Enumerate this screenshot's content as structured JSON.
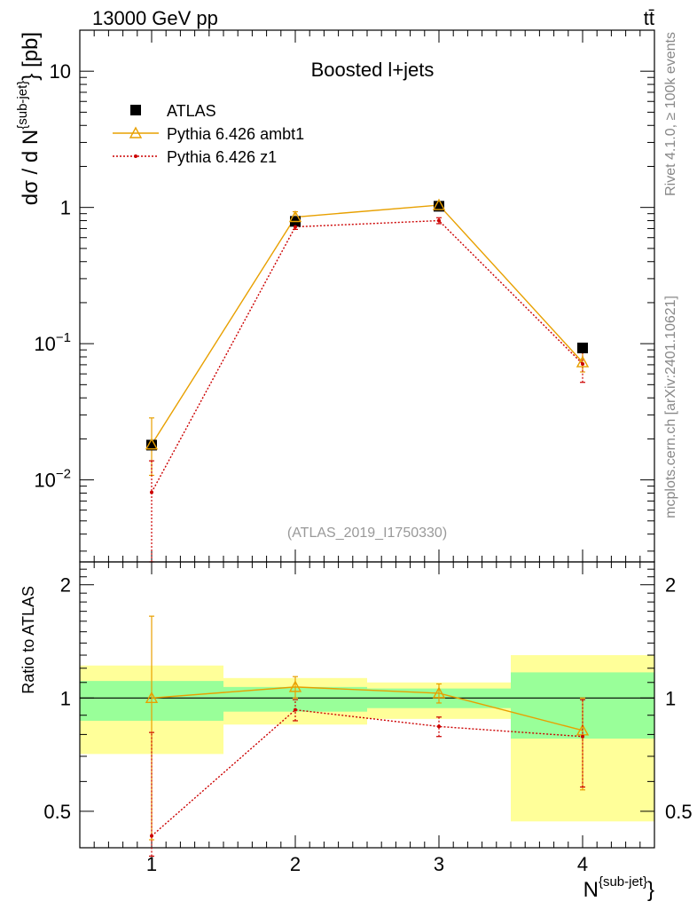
{
  "header": {
    "energy_label": "13000 GeV pp",
    "process_label": "tt̄"
  },
  "side_labels": {
    "rivet": "Rivet 4.1.0, ≥ 100k events",
    "mcplots": "mcplots.cern.ch [arXiv:2401.10621]"
  },
  "chart_data": [
    {
      "type": "line",
      "panel": "main",
      "title": "Boosted l+jets",
      "watermark": "(ATLAS_2019_I1750330)",
      "ylabel_main": "dσ / d N",
      "ylabel_sup": "{sub-jet}",
      "ylabel_tail": "} [pb]",
      "yscale": "log",
      "ylim": [
        0.0025,
        20
      ],
      "xlim": [
        0.5,
        4.5
      ],
      "y_ticks": [
        {
          "value": 0.01,
          "base": "10",
          "exp": "−2"
        },
        {
          "value": 0.1,
          "base": "10",
          "exp": "−1"
        },
        {
          "value": 1,
          "base": "1",
          "exp": ""
        },
        {
          "value": 10,
          "base": "10",
          "exp": ""
        }
      ],
      "legend": {
        "placement": "top-left",
        "entries": [
          "ATLAS",
          "Pythia 6.426 ambt1",
          "Pythia 6.426 z1"
        ]
      },
      "x": [
        1,
        2,
        3,
        4
      ],
      "series": [
        {
          "name": "ATLAS",
          "color": "#000000",
          "marker": "square",
          "values": [
            0.018,
            0.79,
            1.02,
            0.093
          ]
        },
        {
          "name": "Pythia 6.426 ambt1",
          "color": "#e8a000",
          "marker": "triangle",
          "values": [
            0.0182,
            0.85,
            1.04,
            0.073
          ],
          "err_low": [
            0.0108,
            0.78,
            0.98,
            0.062
          ],
          "err_high": [
            0.0285,
            0.93,
            1.1,
            0.086
          ]
        },
        {
          "name": "Pythia 6.426 z1",
          "color": "#cc0000",
          "marker": "dot",
          "values": [
            0.0081,
            0.72,
            0.8,
            0.071
          ],
          "err_low": [
            0.0025,
            0.69,
            0.76,
            0.052
          ],
          "err_high": [
            0.0138,
            0.76,
            0.84,
            0.09
          ]
        }
      ]
    },
    {
      "type": "line",
      "panel": "ratio",
      "ylabel": "Ratio to ATLAS",
      "xlabel_main": "N",
      "xlabel_sup": "{sub-jet}",
      "xlabel_tail": "}",
      "ylim": [
        0.4,
        2.3
      ],
      "xlim": [
        0.5,
        4.5
      ],
      "x_ticks": [
        "1",
        "2",
        "3",
        "4"
      ],
      "y_ticks": [
        {
          "value": 0.5,
          "label": "0.5"
        },
        {
          "value": 1,
          "label": "1"
        },
        {
          "value": 2,
          "label": "2"
        }
      ],
      "bands": [
        {
          "x0": 0.5,
          "x1": 1.5,
          "green": [
            0.87,
            1.11
          ],
          "yellow": [
            0.71,
            1.22
          ]
        },
        {
          "x0": 1.5,
          "x1": 2.5,
          "green": [
            0.92,
            1.07
          ],
          "yellow": [
            0.85,
            1.13
          ]
        },
        {
          "x0": 2.5,
          "x1": 3.5,
          "green": [
            0.94,
            1.06
          ],
          "yellow": [
            0.88,
            1.1
          ]
        },
        {
          "x0": 3.5,
          "x1": 4.5,
          "green": [
            0.78,
            1.17
          ],
          "yellow": [
            0.47,
            1.3
          ]
        }
      ],
      "x": [
        1,
        2,
        3,
        4
      ],
      "series": [
        {
          "name": "Pythia 6.426 ambt1",
          "color": "#e8a000",
          "marker": "triangle",
          "values": [
            1.0,
            1.07,
            1.03,
            0.82
          ],
          "err_low": [
            0.42,
            1.0,
            0.97,
            0.57
          ],
          "err_high": [
            1.65,
            1.14,
            1.09,
            1.0
          ]
        },
        {
          "name": "Pythia 6.426 z1",
          "color": "#cc0000",
          "marker": "dot",
          "values": [
            0.43,
            0.93,
            0.84,
            0.79
          ],
          "err_low": [
            0.38,
            0.87,
            0.79,
            0.58
          ],
          "err_high": [
            0.81,
            0.99,
            0.89,
            0.99
          ]
        }
      ]
    }
  ]
}
